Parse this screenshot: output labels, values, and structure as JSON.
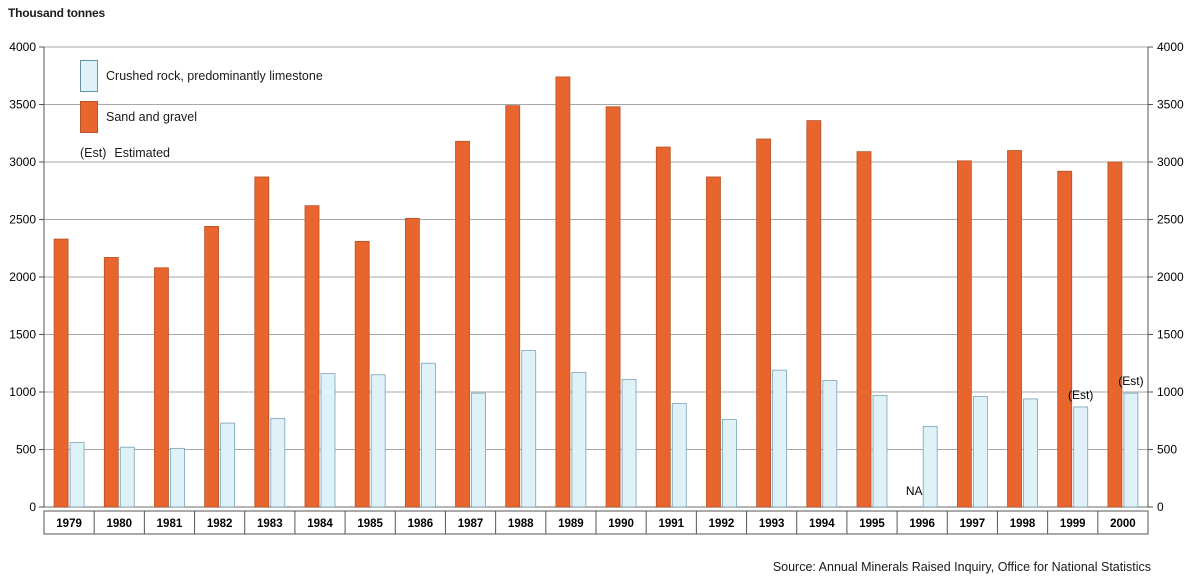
{
  "chart_data": {
    "type": "bar",
    "ylabel": "Thousand tonnes",
    "ylim": [
      0,
      4000
    ],
    "yticks": [
      0,
      500,
      1000,
      1500,
      2000,
      2500,
      3000,
      3500,
      4000
    ],
    "categories": [
      "1979",
      "1980",
      "1981",
      "1982",
      "1983",
      "1984",
      "1985",
      "1986",
      "1987",
      "1988",
      "1989",
      "1990",
      "1991",
      "1992",
      "1993",
      "1994",
      "1995",
      "1996",
      "1997",
      "1998",
      "1999",
      "2000"
    ],
    "series": [
      {
        "name": "Crushed rock, predominantly limestone",
        "color": "#dff2f8",
        "values": [
          560,
          520,
          510,
          730,
          770,
          1160,
          1150,
          1250,
          990,
          1360,
          1170,
          1110,
          900,
          760,
          1190,
          1100,
          970,
          700,
          960,
          940,
          870,
          990
        ]
      },
      {
        "name": "Sand and gravel",
        "color": "#e8652e",
        "values": [
          2330,
          2170,
          2080,
          2440,
          2870,
          2620,
          2310,
          2510,
          3180,
          3490,
          3740,
          3480,
          3130,
          2870,
          3200,
          3360,
          3090,
          null,
          3010,
          3100,
          2920,
          3000
        ]
      }
    ],
    "annotations": [
      {
        "category": "1996",
        "text": "NA"
      },
      {
        "category": "1999",
        "text": "(Est)"
      },
      {
        "category": "2000",
        "text": "(Est)"
      }
    ],
    "legend_note": {
      "lead": "(Est)",
      "text": "Estimated"
    },
    "legend": "top-left",
    "grid": true,
    "source": "Source: Annual Minerals Raised Inquiry, Office for National Statistics"
  }
}
